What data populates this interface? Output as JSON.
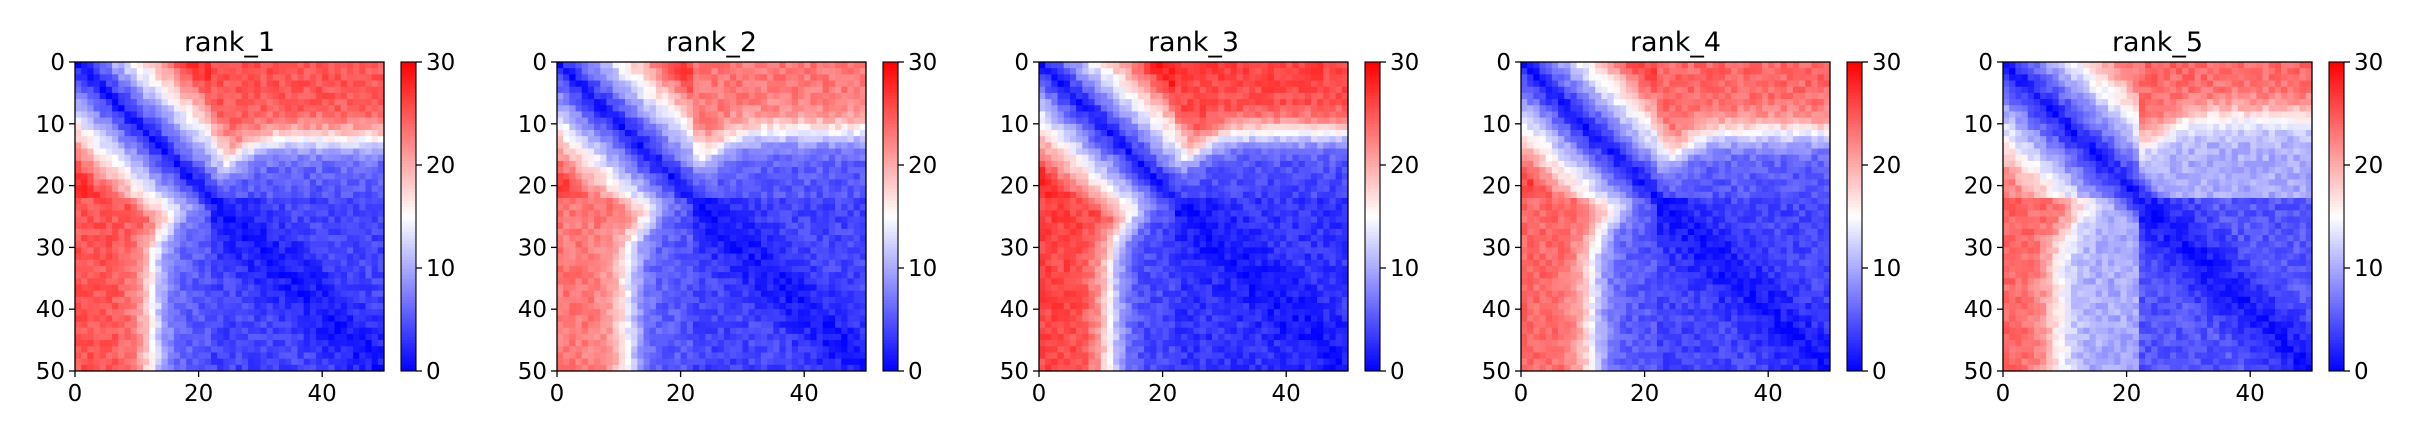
{
  "chart_data": [
    {
      "type": "heatmap",
      "title": "rank_1",
      "xlabel": "",
      "ylabel": "",
      "xlim": [
        0,
        50
      ],
      "ylim": [
        50,
        0
      ],
      "x_ticks": [
        0,
        20,
        40
      ],
      "y_ticks": [
        0,
        10,
        20,
        30,
        40,
        50
      ],
      "colorbar": {
        "vmin": 0,
        "vmax": 30,
        "ticks": [
          0,
          10,
          20,
          30
        ],
        "colormap": "bwr"
      },
      "grid": false,
      "matrix_size": 50,
      "block_split": 22,
      "values": {
        "diagonal": 1,
        "within_first_block_far": 27,
        "within_second_block_far": 4,
        "off_block_near_start": 25,
        "off_block_boundary_x": 12,
        "off_block_inside": 5
      }
    },
    {
      "type": "heatmap",
      "title": "rank_2",
      "xlabel": "",
      "ylabel": "",
      "xlim": [
        0,
        50
      ],
      "ylim": [
        50,
        0
      ],
      "x_ticks": [
        0,
        20,
        40
      ],
      "y_ticks": [
        0,
        10,
        20,
        30,
        40,
        50
      ],
      "colorbar": {
        "vmin": 0,
        "vmax": 30,
        "ticks": [
          0,
          10,
          20,
          30
        ],
        "colormap": "bwr"
      },
      "grid": false,
      "matrix_size": 50,
      "block_split": 22,
      "values": {
        "diagonal": 1,
        "within_first_block_far": 26,
        "within_second_block_far": 4,
        "off_block_near_start": 23,
        "off_block_boundary_x": 11,
        "off_block_inside": 5
      }
    },
    {
      "type": "heatmap",
      "title": "rank_3",
      "xlabel": "",
      "ylabel": "",
      "xlim": [
        0,
        50
      ],
      "ylim": [
        50,
        0
      ],
      "x_ticks": [
        0,
        20,
        40
      ],
      "y_ticks": [
        0,
        10,
        20,
        30,
        40,
        50
      ],
      "colorbar": {
        "vmin": 0,
        "vmax": 30,
        "ticks": [
          0,
          10,
          20,
          30
        ],
        "colormap": "bwr"
      },
      "grid": false,
      "matrix_size": 50,
      "block_split": 22,
      "values": {
        "diagonal": 1,
        "within_first_block_far": 28,
        "within_second_block_far": 3,
        "off_block_near_start": 26,
        "off_block_boundary_x": 11,
        "off_block_inside": 4
      }
    },
    {
      "type": "heatmap",
      "title": "rank_4",
      "xlabel": "",
      "ylabel": "",
      "xlim": [
        0,
        50
      ],
      "ylim": [
        50,
        0
      ],
      "x_ticks": [
        0,
        20,
        40
      ],
      "y_ticks": [
        0,
        10,
        20,
        30,
        40,
        50
      ],
      "colorbar": {
        "vmin": 0,
        "vmax": 30,
        "ticks": [
          0,
          10,
          20,
          30
        ],
        "colormap": "bwr"
      },
      "grid": false,
      "matrix_size": 50,
      "block_split": 22,
      "values": {
        "diagonal": 1,
        "within_first_block_far": 26,
        "within_second_block_far": 4,
        "off_block_near_start": 24,
        "off_block_boundary_x": 11,
        "off_block_inside": 5
      }
    },
    {
      "type": "heatmap",
      "title": "rank_5",
      "xlabel": "",
      "ylabel": "",
      "xlim": [
        0,
        50
      ],
      "ylim": [
        50,
        0
      ],
      "x_ticks": [
        0,
        20,
        40
      ],
      "y_ticks": [
        0,
        10,
        20,
        30,
        40,
        50
      ],
      "colorbar": {
        "vmin": 0,
        "vmax": 30,
        "ticks": [
          0,
          10,
          20,
          30
        ],
        "colormap": "bwr"
      },
      "grid": false,
      "matrix_size": 50,
      "block_split": 22,
      "values": {
        "diagonal": 1,
        "within_first_block_far": 22,
        "within_second_block_far": 5,
        "off_block_near_start": 24,
        "off_block_boundary_x": 8,
        "off_block_inside": 10
      }
    }
  ]
}
